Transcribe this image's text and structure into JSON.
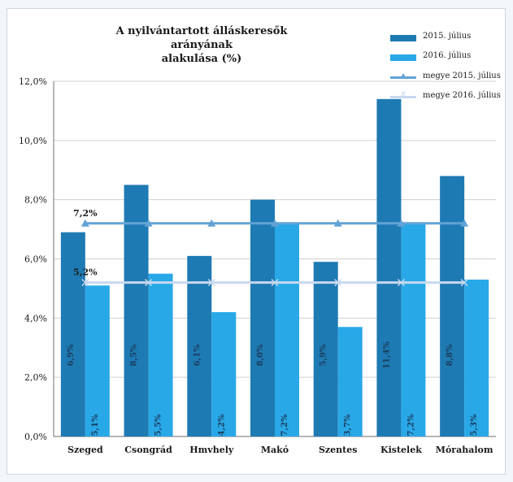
{
  "chart_data": {
    "type": "bar",
    "title": [
      "A nyilvántartott álláskeresők arányának",
      "alakulása (%)"
    ],
    "categories": [
      "Szeged",
      "Csongrád",
      "Hmvhely",
      "Makó",
      "Szentes",
      "Kistelek",
      "Mórahalom"
    ],
    "series": [
      {
        "name": "2015. július",
        "kind": "bar",
        "color": "#1e7ab3",
        "values": [
          6.9,
          8.5,
          6.1,
          8.0,
          5.9,
          11.4,
          8.8
        ],
        "labels": [
          "6,9%",
          "8,5%",
          "6,1%",
          "8,0%",
          "5,9%",
          "11,4%",
          "8,8%"
        ]
      },
      {
        "name": "2016. július",
        "kind": "bar",
        "color": "#29a8e8",
        "values": [
          5.1,
          5.5,
          4.2,
          7.2,
          3.7,
          7.2,
          5.3
        ],
        "labels": [
          "5,1%",
          "5,5%",
          "4,2%",
          "7,2%",
          "3,7%",
          "7,2%",
          "5,3%"
        ]
      },
      {
        "name": "megye 2015. július",
        "kind": "line",
        "color": "#62a3d6",
        "marker": "triangle",
        "values": [
          7.2,
          7.2,
          7.2,
          7.2,
          7.2,
          7.2,
          7.2
        ],
        "annotation": "7,2%"
      },
      {
        "name": "megye 2016. július",
        "kind": "line",
        "color": "#c8d8ef",
        "marker": "x",
        "values": [
          5.2,
          5.2,
          5.2,
          5.2,
          5.2,
          5.2,
          5.2
        ],
        "annotation": "5,2%"
      }
    ],
    "ylim": [
      0,
      12
    ],
    "yticks": [
      "0,0%",
      "2,0%",
      "4,0%",
      "6,0%",
      "8,0%",
      "10,0%",
      "12,0%"
    ],
    "ytick_values": [
      0,
      2,
      4,
      6,
      8,
      10,
      12
    ],
    "grid": true,
    "legend_position": "top-right"
  }
}
